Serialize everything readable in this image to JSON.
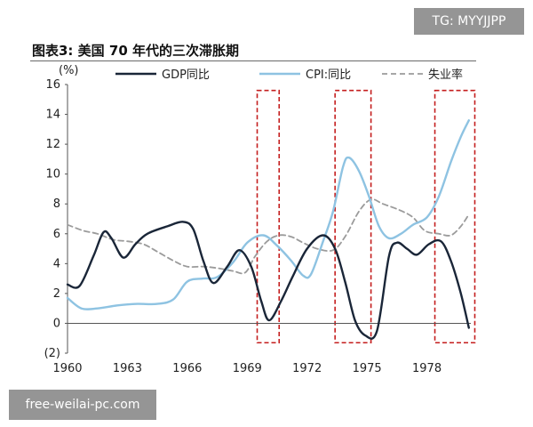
{
  "figure": {
    "title": "图表3:  美国 70 年代的三次滞胀期",
    "y_unit": "(%)"
  },
  "watermarks": {
    "top": "TG: MYYJJPP",
    "bottom": "free-weilai-pc.com"
  },
  "chart_data": {
    "type": "line",
    "title": "图表3:  美国 70 年代的三次滞胀期",
    "xlabel": "",
    "ylabel": "(%)",
    "xlim": [
      1960,
      1980.2
    ],
    "ylim": [
      -2,
      16
    ],
    "x_ticks": [
      1960,
      1963,
      1966,
      1969,
      1972,
      1975,
      1978
    ],
    "y_ticks": [
      -2,
      0,
      2,
      4,
      6,
      8,
      10,
      12,
      14,
      16
    ],
    "y_tick_labels": [
      "(2)",
      "0",
      "2",
      "4",
      "6",
      "8",
      "10",
      "12",
      "14",
      "16"
    ],
    "grid": false,
    "legend_position": "top",
    "series": [
      {
        "name": "GDP同比",
        "color": "#1a2638",
        "style": "solid",
        "points": [
          [
            1960,
            2.6
          ],
          [
            1960.6,
            2.5
          ],
          [
            1961.3,
            4.5
          ],
          [
            1961.8,
            6.1
          ],
          [
            1962.2,
            5.7
          ],
          [
            1962.8,
            4.4
          ],
          [
            1963.4,
            5.3
          ],
          [
            1964,
            6.0
          ],
          [
            1965,
            6.5
          ],
          [
            1965.8,
            6.8
          ],
          [
            1966.3,
            6.3
          ],
          [
            1966.8,
            4.2
          ],
          [
            1967.3,
            2.7
          ],
          [
            1968,
            3.8
          ],
          [
            1968.6,
            4.9
          ],
          [
            1969.2,
            3.8
          ],
          [
            1969.7,
            1.5
          ],
          [
            1970.1,
            0.2
          ],
          [
            1970.7,
            1.5
          ],
          [
            1971.3,
            3.2
          ],
          [
            1972,
            5.0
          ],
          [
            1972.8,
            5.9
          ],
          [
            1973.4,
            5.0
          ],
          [
            1973.9,
            2.8
          ],
          [
            1974.4,
            0.2
          ],
          [
            1974.9,
            -0.8
          ],
          [
            1975.5,
            -0.5
          ],
          [
            1976.1,
            4.5
          ],
          [
            1976.5,
            5.4
          ],
          [
            1977,
            5.0
          ],
          [
            1977.5,
            4.6
          ],
          [
            1978.1,
            5.3
          ],
          [
            1978.7,
            5.5
          ],
          [
            1979.2,
            4.2
          ],
          [
            1979.7,
            2.0
          ],
          [
            1980.1,
            -0.3
          ]
        ]
      },
      {
        "name": "CPI:同比",
        "color": "#8ec3e2",
        "style": "solid",
        "points": [
          [
            1960,
            1.7
          ],
          [
            1960.7,
            1.0
          ],
          [
            1961.5,
            1.0
          ],
          [
            1962.5,
            1.2
          ],
          [
            1963.5,
            1.3
          ],
          [
            1964.5,
            1.3
          ],
          [
            1965.3,
            1.6
          ],
          [
            1966,
            2.8
          ],
          [
            1966.8,
            3.0
          ],
          [
            1967.5,
            3.1
          ],
          [
            1968.3,
            4.1
          ],
          [
            1969,
            5.4
          ],
          [
            1969.8,
            5.9
          ],
          [
            1970.5,
            5.2
          ],
          [
            1971.2,
            4.2
          ],
          [
            1971.8,
            3.2
          ],
          [
            1972.2,
            3.3
          ],
          [
            1972.8,
            5.5
          ],
          [
            1973.3,
            7.5
          ],
          [
            1973.8,
            10.5
          ],
          [
            1974.1,
            11.1
          ],
          [
            1974.6,
            10.2
          ],
          [
            1975.1,
            8.5
          ],
          [
            1975.6,
            6.5
          ],
          [
            1976.1,
            5.7
          ],
          [
            1976.7,
            6.0
          ],
          [
            1977.3,
            6.6
          ],
          [
            1978,
            7.1
          ],
          [
            1978.6,
            8.5
          ],
          [
            1979.2,
            10.8
          ],
          [
            1979.7,
            12.5
          ],
          [
            1980.1,
            13.6
          ]
        ]
      },
      {
        "name": "失业率",
        "color": "#9b9b9b",
        "style": "dashed",
        "points": [
          [
            1960,
            6.6
          ],
          [
            1960.8,
            6.2
          ],
          [
            1961.5,
            6.0
          ],
          [
            1962.3,
            5.6
          ],
          [
            1963,
            5.5
          ],
          [
            1963.8,
            5.3
          ],
          [
            1964.5,
            4.8
          ],
          [
            1965.3,
            4.2
          ],
          [
            1966,
            3.8
          ],
          [
            1966.8,
            3.8
          ],
          [
            1967.5,
            3.7
          ],
          [
            1968.3,
            3.5
          ],
          [
            1968.9,
            3.4
          ],
          [
            1969.4,
            4.5
          ],
          [
            1970,
            5.5
          ],
          [
            1970.6,
            5.9
          ],
          [
            1971.2,
            5.8
          ],
          [
            1971.8,
            5.4
          ],
          [
            1972.5,
            5.0
          ],
          [
            1973.3,
            4.9
          ],
          [
            1973.9,
            5.8
          ],
          [
            1974.6,
            7.5
          ],
          [
            1975.2,
            8.3
          ],
          [
            1975.8,
            8.0
          ],
          [
            1976.6,
            7.6
          ],
          [
            1977.3,
            7.1
          ],
          [
            1977.9,
            6.2
          ],
          [
            1978.6,
            6.0
          ],
          [
            1979.2,
            5.9
          ],
          [
            1979.7,
            6.5
          ],
          [
            1980.1,
            7.3
          ]
        ]
      }
    ],
    "highlight_periods": [
      {
        "x": [
          1969.5,
          1970.6
        ],
        "y": [
          -1.3,
          15.6
        ]
      },
      {
        "x": [
          1973.4,
          1975.2
        ],
        "y": [
          -1.3,
          15.6
        ]
      },
      {
        "x": [
          1978.4,
          1980.4
        ],
        "y": [
          -1.3,
          15.6
        ]
      }
    ],
    "highlight_color": "#c41e1e"
  }
}
